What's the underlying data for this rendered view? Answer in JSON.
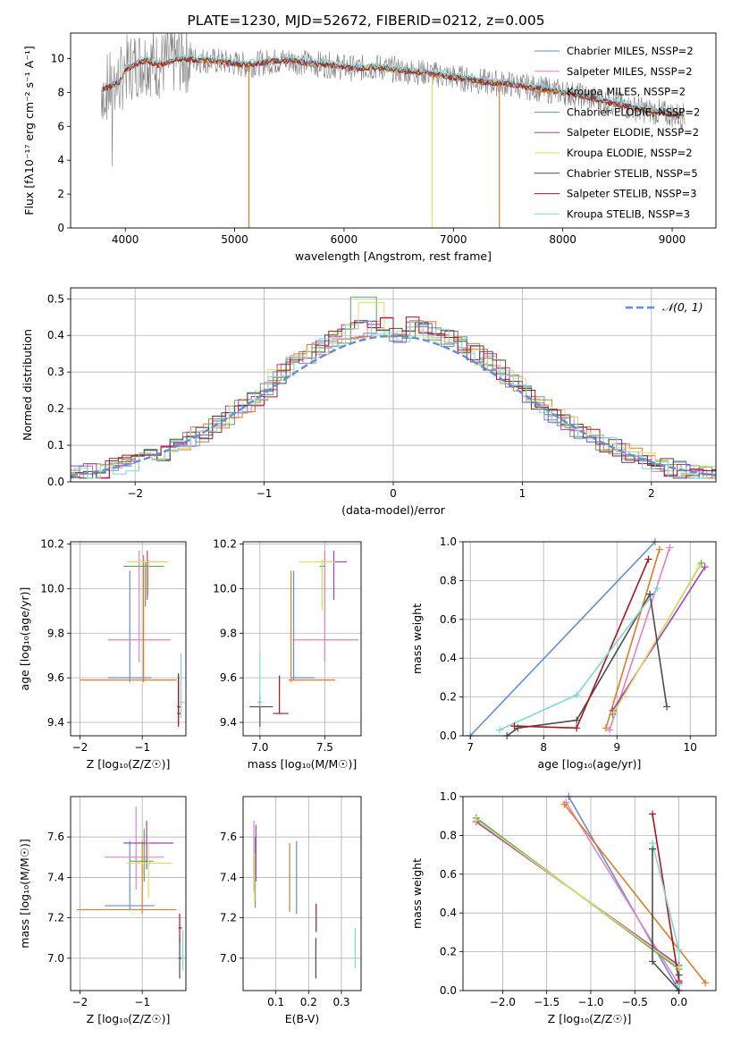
{
  "colors": [
    "#5f8fd6",
    "#e87fc0",
    "#e67a1e",
    "#5aa95a",
    "#a43fc1",
    "#dde15a",
    "#4d4d4d",
    "#b0141e",
    "#7dd8d8"
  ],
  "chart_data": [
    {
      "id": "spectrum",
      "type": "line",
      "title": "PLATE=1230, MJD=52672, FIBERID=0212, z=0.005",
      "xlabel": "wavelength [Angstrom, rest frame]",
      "ylabel": "Flux [fλ10⁻¹⁷ erg cm⁻² s⁻¹ A⁻¹]",
      "xlim": [
        3500,
        9400
      ],
      "ylim": [
        0,
        11.5
      ],
      "xticks": [
        4000,
        5000,
        6000,
        7000,
        8000,
        9000
      ],
      "yticks": [
        0,
        2,
        4,
        6,
        8,
        10
      ],
      "grid": false,
      "legend_position": "top-right",
      "legend": [
        "Chabrier MILES, NSSP=2",
        "Salpeter MILES, NSSP=2",
        "Kroupa MILES, NSSP=2",
        "Chabrier ELODIE, NSSP=2",
        "Salpeter ELODIE, NSSP=2",
        "Kroupa ELODIE, NSSP=2",
        "Chabrier STELIB, NSSP=5",
        "Salpeter STELIB, NSSP=3",
        "Kroupa STELIB, NSSP=3"
      ],
      "model_x": [
        3800,
        3850,
        3900,
        3950,
        4000,
        4100,
        4200,
        4300,
        4400,
        4500,
        4700,
        4900,
        5100,
        5300,
        5500,
        5700,
        5900,
        6100,
        6300,
        6500,
        6700,
        6900,
        7100,
        7300,
        7500,
        7700,
        7900,
        8100,
        8300,
        8500,
        8700,
        8900,
        9100
      ],
      "model_y": [
        8.2,
        8.3,
        8.5,
        8.6,
        9.3,
        9.7,
        9.9,
        9.6,
        9.8,
        10.0,
        9.9,
        9.8,
        9.6,
        9.8,
        9.9,
        9.7,
        9.6,
        9.4,
        9.5,
        9.3,
        9.2,
        9.0,
        8.8,
        8.6,
        8.5,
        8.3,
        8.1,
        7.9,
        7.6,
        7.3,
        7.0,
        6.8,
        6.6
      ],
      "data_x_range": [
        3780,
        9120
      ]
    },
    {
      "id": "residuals",
      "type": "histogram",
      "xlabel": "(data-model)/error",
      "ylabel": "Normed distribution",
      "xlim": [
        -2.5,
        2.5
      ],
      "ylim": [
        0,
        0.53
      ],
      "xticks": [
        -2,
        -1,
        0,
        1,
        2
      ],
      "yticks": [
        0.0,
        0.1,
        0.2,
        0.3,
        0.4,
        0.5
      ],
      "grid": true,
      "legend_position": "top-right",
      "legend": [
        "𝒩(0, 1)"
      ],
      "bin_width": 0.1,
      "peak_bins": {
        "x": [
          -0.3,
          -0.2
        ],
        "y": [
          0.505,
          0.505
        ]
      },
      "gaussian": {
        "mean": 0,
        "sigma": 1
      }
    },
    {
      "id": "age_vs_Z",
      "type": "error-bars",
      "xlabel": "Z [log₁₀(Z/Z☉)]",
      "ylabel": "age  [log₁₀(age/yr)]",
      "xlim": [
        -2.15,
        -0.3
      ],
      "ylim": [
        9.34,
        10.21
      ],
      "xticks": [
        -2,
        -1
      ],
      "yticks": [
        9.4,
        9.6,
        9.8,
        10.0,
        10.2
      ],
      "grid": true,
      "points": [
        {
          "s": 0,
          "x": -1.2,
          "xe": [
            -1.55,
            -0.85
          ],
          "y": 9.6,
          "ye": [
            9.58,
            10.08
          ]
        },
        {
          "s": 1,
          "x": -1.05,
          "xe": [
            -1.55,
            -0.55
          ],
          "y": 9.77,
          "ye": [
            9.67,
            10.17
          ]
        },
        {
          "s": 2,
          "x": -0.98,
          "xe": [
            -2.0,
            -0.45
          ],
          "y": 9.59,
          "ye": [
            9.58,
            10.15
          ]
        },
        {
          "s": 3,
          "x": -0.95,
          "xe": [
            -1.3,
            -0.65
          ],
          "y": 10.1,
          "ye": [
            9.92,
            10.12
          ]
        },
        {
          "s": 4,
          "x": -0.92,
          "xe": [
            -1.2,
            -0.62
          ],
          "y": 10.12,
          "ye": [
            9.95,
            10.17
          ]
        },
        {
          "s": 5,
          "x": -0.9,
          "xe": [
            -1.25,
            -0.58
          ],
          "y": 10.12,
          "ye": [
            9.97,
            10.13
          ]
        },
        {
          "s": 6,
          "x": -0.42,
          "xe": [
            -0.44,
            -0.38
          ],
          "y": 9.47,
          "ye": [
            9.38,
            9.62
          ]
        },
        {
          "s": 7,
          "x": -0.42,
          "xe": [
            -0.44,
            -0.38
          ],
          "y": 9.44,
          "ye": [
            9.39,
            9.61
          ]
        },
        {
          "s": 8,
          "x": -0.38,
          "xe": [
            -0.4,
            -0.32
          ],
          "y": 9.49,
          "ye": [
            9.42,
            9.71
          ]
        }
      ]
    },
    {
      "id": "age_vs_mass",
      "type": "error-bars",
      "xlabel": "mass [log₁₀(M/M☉)]",
      "ylabel": "",
      "xlim": [
        6.87,
        7.78
      ],
      "ylim": [
        9.34,
        10.21
      ],
      "xticks": [
        7.0,
        7.5
      ],
      "yticks": [
        9.4,
        9.6,
        9.8,
        10.0,
        10.2
      ],
      "grid": true,
      "points": [
        {
          "s": 0,
          "x": 7.26,
          "xe": [
            7.24,
            7.42
          ],
          "y": 9.6,
          "ye": [
            9.59,
            10.08
          ]
        },
        {
          "s": 1,
          "x": 7.5,
          "xe": [
            7.25,
            7.76
          ],
          "y": 9.77,
          "ye": [
            9.67,
            10.17
          ]
        },
        {
          "s": 2,
          "x": 7.24,
          "xe": [
            7.22,
            7.58
          ],
          "y": 9.59,
          "ye": [
            9.58,
            10.08
          ]
        },
        {
          "s": 3,
          "x": 7.48,
          "xe": [
            7.46,
            7.5
          ],
          "y": 10.1,
          "ye": [
            9.92,
            10.12
          ]
        },
        {
          "s": 4,
          "x": 7.57,
          "xe": [
            7.47,
            7.67
          ],
          "y": 10.12,
          "ye": [
            9.95,
            10.17
          ]
        },
        {
          "s": 5,
          "x": 7.48,
          "xe": [
            7.3,
            7.58
          ],
          "y": 10.12,
          "ye": [
            9.9,
            10.13
          ]
        },
        {
          "s": 6,
          "x": 7.0,
          "xe": [
            6.92,
            7.1
          ],
          "y": 9.47,
          "ye": [
            9.38,
            9.52
          ]
        },
        {
          "s": 7,
          "x": 7.15,
          "xe": [
            7.1,
            7.22
          ],
          "y": 9.44,
          "ye": [
            9.44,
            9.61
          ]
        },
        {
          "s": 8,
          "x": 7.0,
          "xe": [
            6.98,
            7.02
          ],
          "y": 9.49,
          "ye": [
            9.47,
            9.71
          ]
        }
      ]
    },
    {
      "id": "mw_vs_age",
      "type": "line",
      "xlabel": "age  [log₁₀(age/yr)]",
      "ylabel": "mass weight",
      "xlim": [
        6.9,
        10.35
      ],
      "ylim": [
        0,
        1
      ],
      "xticks": [
        7,
        8,
        9,
        10
      ],
      "yticks": [
        0.0,
        0.2,
        0.4,
        0.6,
        0.8,
        1.0
      ],
      "grid": true,
      "series": [
        {
          "s": 0,
          "x": [
            7.0,
            9.52
          ],
          "y": [
            0.0,
            1.0
          ]
        },
        {
          "s": 1,
          "x": [
            8.9,
            9.72
          ],
          "y": [
            0.03,
            0.97
          ]
        },
        {
          "s": 2,
          "x": [
            8.85,
            9.58
          ],
          "y": [
            0.04,
            0.96
          ]
        },
        {
          "s": 3,
          "x": [
            8.94,
            10.15
          ],
          "y": [
            0.11,
            0.89
          ]
        },
        {
          "s": 4,
          "x": [
            8.94,
            10.2
          ],
          "y": [
            0.13,
            0.87
          ]
        },
        {
          "s": 5,
          "x": [
            8.96,
            10.13
          ],
          "y": [
            0.12,
            0.88
          ]
        },
        {
          "s": 6,
          "x": [
            7.5,
            7.65,
            8.45,
            9.45,
            9.68
          ],
          "y": [
            0.0,
            0.04,
            0.08,
            0.73,
            0.15
          ]
        },
        {
          "s": 7,
          "x": [
            7.6,
            8.45,
            9.43
          ],
          "y": [
            0.05,
            0.04,
            0.91
          ]
        },
        {
          "s": 8,
          "x": [
            7.4,
            8.45,
            9.55
          ],
          "y": [
            0.03,
            0.21,
            0.76
          ]
        }
      ]
    },
    {
      "id": "mass_vs_Z",
      "type": "error-bars",
      "xlabel": "Z [log₁₀(Z/Z☉)]",
      "ylabel": "mass [log₁₀(M/M☉)]",
      "xlim": [
        -2.15,
        -0.3
      ],
      "ylim": [
        6.84,
        7.8
      ],
      "xticks": [
        -2,
        -1
      ],
      "yticks": [
        7.0,
        7.2,
        7.4,
        7.6
      ],
      "grid": true,
      "points": [
        {
          "s": 0,
          "x": -1.2,
          "xe": [
            -1.6,
            -0.8
          ],
          "y": 7.26,
          "ye": [
            7.24,
            7.58
          ]
        },
        {
          "s": 1,
          "x": -1.1,
          "xe": [
            -1.6,
            -0.65
          ],
          "y": 7.5,
          "ye": [
            7.34,
            7.75
          ]
        },
        {
          "s": 2,
          "x": -1.0,
          "xe": [
            -2.05,
            -0.45
          ],
          "y": 7.24,
          "ye": [
            7.22,
            7.58
          ]
        },
        {
          "s": 3,
          "x": -0.97,
          "xe": [
            -1.2,
            -0.82
          ],
          "y": 7.48,
          "ye": [
            7.38,
            7.64
          ]
        },
        {
          "s": 4,
          "x": -0.93,
          "xe": [
            -1.3,
            -0.5
          ],
          "y": 7.57,
          "ye": [
            7.44,
            7.68
          ]
        },
        {
          "s": 5,
          "x": -0.9,
          "xe": [
            -1.25,
            -0.52
          ],
          "y": 7.47,
          "ye": [
            7.3,
            7.58
          ]
        },
        {
          "s": 6,
          "x": -0.4,
          "xe": [
            -0.42,
            -0.36
          ],
          "y": 7.0,
          "ye": [
            6.9,
            7.1
          ]
        },
        {
          "s": 7,
          "x": -0.4,
          "xe": [
            -0.42,
            -0.36
          ],
          "y": 7.15,
          "ye": [
            7.08,
            7.22
          ]
        },
        {
          "s": 8,
          "x": -0.35,
          "xe": [
            -0.37,
            -0.32
          ],
          "y": 7.0,
          "ye": [
            6.94,
            7.14
          ]
        }
      ]
    },
    {
      "id": "mass_vs_ebv",
      "type": "error-bars",
      "xlabel": "E(B-V)",
      "ylabel": "",
      "xlim": [
        0.0,
        0.36
      ],
      "ylim": [
        6.84,
        7.8
      ],
      "xticks": [
        0.1,
        0.2,
        0.3
      ],
      "yticks": [
        7.0,
        7.2,
        7.4,
        7.6
      ],
      "grid": true,
      "points": [
        {
          "s": 0,
          "x": 0.163,
          "xe": [
            0.163,
            0.163
          ],
          "y": 7.4,
          "ye": [
            7.22,
            7.58
          ]
        },
        {
          "s": 1,
          "x": 0.033,
          "xe": [
            0.033,
            0.033
          ],
          "y": 7.5,
          "ye": [
            7.33,
            7.68
          ]
        },
        {
          "s": 2,
          "x": 0.142,
          "xe": [
            0.142,
            0.142
          ],
          "y": 7.4,
          "ye": [
            7.23,
            7.57
          ]
        },
        {
          "s": 3,
          "x": 0.037,
          "xe": [
            0.037,
            0.037
          ],
          "y": 7.45,
          "ye": [
            7.25,
            7.6
          ]
        },
        {
          "s": 4,
          "x": 0.039,
          "xe": [
            0.039,
            0.039
          ],
          "y": 7.5,
          "ye": [
            7.38,
            7.66
          ]
        },
        {
          "s": 5,
          "x": 0.035,
          "xe": [
            0.035,
            0.035
          ],
          "y": 7.4,
          "ye": [
            7.28,
            7.52
          ]
        },
        {
          "s": 6,
          "x": 0.222,
          "xe": [
            0.222,
            0.222
          ],
          "y": 7.0,
          "ye": [
            6.9,
            7.1
          ]
        },
        {
          "s": 7,
          "x": 0.223,
          "xe": [
            0.223,
            0.223
          ],
          "y": 7.2,
          "ye": [
            7.13,
            7.27
          ]
        },
        {
          "s": 8,
          "x": 0.342,
          "xe": [
            0.342,
            0.342
          ],
          "y": 7.05,
          "ye": [
            6.95,
            7.15
          ]
        }
      ]
    },
    {
      "id": "mw_vs_Z",
      "type": "line",
      "xlabel": "Z [log₁₀(Z/Z☉)]",
      "ylabel": "mass weight",
      "xlim": [
        -2.45,
        0.42
      ],
      "ylim": [
        0,
        1
      ],
      "xticks": [
        -2.0,
        -1.5,
        -1.0,
        -0.5,
        0.0
      ],
      "yticks": [
        0.0,
        0.2,
        0.4,
        0.6,
        0.8,
        1.0
      ],
      "grid": true,
      "series": [
        {
          "s": 0,
          "x": [
            -1.25,
            0.0
          ],
          "y": [
            1.0,
            0.0
          ]
        },
        {
          "s": 1,
          "x": [
            -1.28,
            0.0
          ],
          "y": [
            0.97,
            0.03
          ]
        },
        {
          "s": 2,
          "x": [
            -1.3,
            0.3
          ],
          "y": [
            0.96,
            0.04
          ]
        },
        {
          "s": 3,
          "x": [
            -2.3,
            0.0
          ],
          "y": [
            0.89,
            0.11
          ]
        },
        {
          "s": 4,
          "x": [
            -2.3,
            0.0
          ],
          "y": [
            0.87,
            0.13
          ]
        },
        {
          "s": 5,
          "x": [
            -2.3,
            0.0
          ],
          "y": [
            0.88,
            0.12
          ]
        },
        {
          "s": 6,
          "x": [
            -0.3,
            -0.3,
            0.0,
            0.0,
            0.0
          ],
          "y": [
            0.73,
            0.15,
            0.0,
            0.04,
            0.08
          ]
        },
        {
          "s": 7,
          "x": [
            -0.3,
            0.0,
            0.0
          ],
          "y": [
            0.91,
            0.05,
            0.04
          ]
        },
        {
          "s": 8,
          "x": [
            -0.3,
            0.0,
            0.0
          ],
          "y": [
            0.76,
            0.21,
            0.03
          ]
        }
      ]
    }
  ]
}
